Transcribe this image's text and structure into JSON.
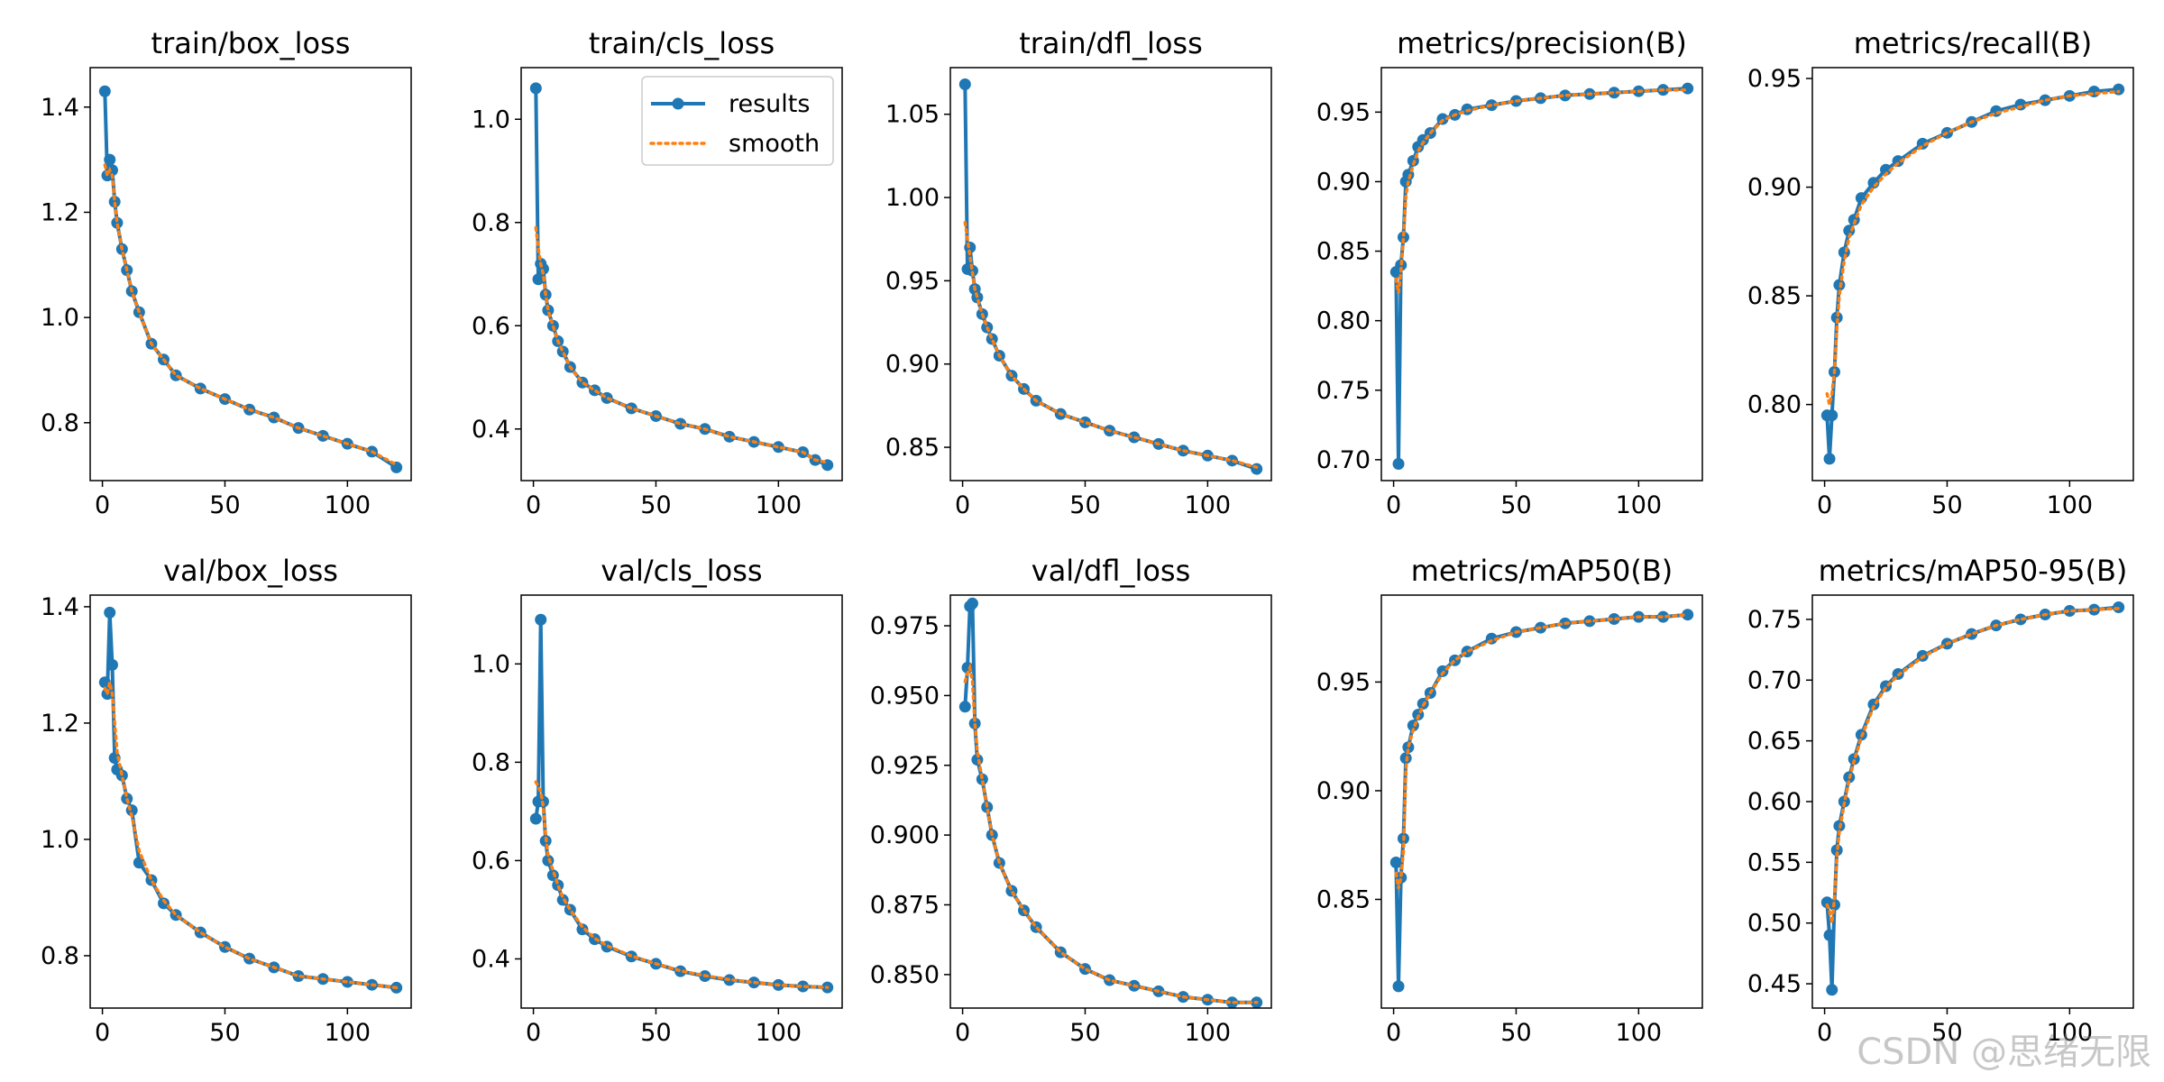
{
  "watermark": "CSDN @思绪无限",
  "colors": {
    "results": "#1f77b4",
    "smooth": "#ff7f0e"
  },
  "chart_data": [
    {
      "type": "line",
      "title": "train/box_loss",
      "x": [
        1,
        2,
        3,
        4,
        5,
        6,
        8,
        10,
        12,
        15,
        20,
        25,
        30,
        40,
        50,
        60,
        70,
        80,
        90,
        100,
        110,
        120
      ],
      "series": [
        {
          "name": "results",
          "values": [
            1.43,
            1.27,
            1.3,
            1.28,
            1.22,
            1.18,
            1.13,
            1.09,
            1.05,
            1.01,
            0.95,
            0.92,
            0.89,
            0.865,
            0.845,
            0.825,
            0.81,
            0.79,
            0.775,
            0.76,
            0.745,
            0.715
          ]
        },
        {
          "name": "smooth",
          "values": [
            1.29,
            1.27,
            1.28,
            1.27,
            1.22,
            1.18,
            1.13,
            1.09,
            1.05,
            1.01,
            0.95,
            0.92,
            0.89,
            0.865,
            0.845,
            0.825,
            0.81,
            0.79,
            0.775,
            0.76,
            0.745,
            0.72
          ]
        }
      ],
      "xlim": [
        -5,
        126
      ],
      "ylim": [
        0.69,
        1.475
      ],
      "xticks": [
        0,
        50,
        100
      ],
      "yticks": [
        0.8,
        1.0,
        1.2,
        1.4
      ],
      "ytick_labels": [
        "0.8",
        "1.0",
        "1.2",
        "1.4"
      ],
      "legend": false
    },
    {
      "type": "line",
      "title": "train/cls_loss",
      "x": [
        1,
        2,
        3,
        4,
        5,
        6,
        8,
        10,
        12,
        15,
        20,
        25,
        30,
        40,
        50,
        60,
        70,
        80,
        90,
        100,
        110,
        115,
        120
      ],
      "series": [
        {
          "name": "results",
          "values": [
            1.06,
            0.69,
            0.72,
            0.71,
            0.66,
            0.63,
            0.6,
            0.57,
            0.55,
            0.52,
            0.49,
            0.475,
            0.46,
            0.44,
            0.425,
            0.41,
            0.4,
            0.385,
            0.375,
            0.365,
            0.355,
            0.34,
            0.33
          ]
        },
        {
          "name": "smooth",
          "values": [
            0.79,
            0.75,
            0.72,
            0.7,
            0.66,
            0.63,
            0.6,
            0.57,
            0.55,
            0.52,
            0.49,
            0.475,
            0.46,
            0.44,
            0.425,
            0.41,
            0.4,
            0.385,
            0.375,
            0.365,
            0.355,
            0.34,
            0.335
          ]
        }
      ],
      "xlim": [
        -5,
        126
      ],
      "ylim": [
        0.3,
        1.1
      ],
      "xticks": [
        0,
        50,
        100
      ],
      "yticks": [
        0.4,
        0.6,
        0.8,
        1.0
      ],
      "ytick_labels": [
        "0.4",
        "0.6",
        "0.8",
        "1.0"
      ],
      "legend": true,
      "legend_position": "upper right"
    },
    {
      "type": "line",
      "title": "train/dfl_loss",
      "x": [
        1,
        2,
        3,
        4,
        5,
        6,
        8,
        10,
        12,
        15,
        20,
        25,
        30,
        40,
        50,
        60,
        70,
        80,
        90,
        100,
        110,
        120
      ],
      "series": [
        {
          "name": "results",
          "values": [
            1.068,
            0.957,
            0.97,
            0.956,
            0.945,
            0.94,
            0.93,
            0.922,
            0.915,
            0.905,
            0.893,
            0.885,
            0.878,
            0.87,
            0.865,
            0.86,
            0.856,
            0.852,
            0.848,
            0.845,
            0.842,
            0.837
          ]
        },
        {
          "name": "smooth",
          "values": [
            0.985,
            0.975,
            0.965,
            0.955,
            0.945,
            0.94,
            0.93,
            0.922,
            0.915,
            0.905,
            0.893,
            0.885,
            0.878,
            0.87,
            0.865,
            0.86,
            0.856,
            0.852,
            0.848,
            0.845,
            0.842,
            0.838
          ]
        }
      ],
      "xlim": [
        -5,
        126
      ],
      "ylim": [
        0.83,
        1.078
      ],
      "xticks": [
        0,
        50,
        100
      ],
      "yticks": [
        0.85,
        0.9,
        0.95,
        1.0,
        1.05
      ],
      "ytick_labels": [
        "0.85",
        "0.90",
        "0.95",
        "1.00",
        "1.05"
      ],
      "legend": false
    },
    {
      "type": "line",
      "title": "metrics/precision(B)",
      "x": [
        1,
        2,
        3,
        4,
        5,
        6,
        8,
        10,
        12,
        15,
        20,
        25,
        30,
        40,
        50,
        60,
        70,
        80,
        90,
        100,
        110,
        120
      ],
      "series": [
        {
          "name": "results",
          "values": [
            0.835,
            0.697,
            0.84,
            0.86,
            0.9,
            0.905,
            0.915,
            0.925,
            0.93,
            0.935,
            0.945,
            0.948,
            0.952,
            0.955,
            0.958,
            0.96,
            0.962,
            0.963,
            0.964,
            0.965,
            0.966,
            0.967
          ]
        },
        {
          "name": "smooth",
          "values": [
            0.83,
            0.82,
            0.835,
            0.86,
            0.89,
            0.9,
            0.912,
            0.922,
            0.928,
            0.935,
            0.944,
            0.948,
            0.951,
            0.955,
            0.958,
            0.96,
            0.962,
            0.963,
            0.964,
            0.965,
            0.966,
            0.966
          ]
        }
      ],
      "xlim": [
        -5,
        126
      ],
      "ylim": [
        0.685,
        0.982
      ],
      "xticks": [
        0,
        50,
        100
      ],
      "yticks": [
        0.7,
        0.75,
        0.8,
        0.85,
        0.9,
        0.95
      ],
      "ytick_labels": [
        "0.70",
        "0.75",
        "0.80",
        "0.85",
        "0.90",
        "0.95"
      ],
      "legend": false
    },
    {
      "type": "line",
      "title": "metrics/recall(B)",
      "x": [
        1,
        2,
        3,
        4,
        5,
        6,
        8,
        10,
        12,
        15,
        20,
        25,
        30,
        40,
        50,
        60,
        70,
        80,
        90,
        100,
        110,
        120
      ],
      "series": [
        {
          "name": "results",
          "values": [
            0.795,
            0.775,
            0.795,
            0.815,
            0.84,
            0.855,
            0.87,
            0.88,
            0.885,
            0.895,
            0.902,
            0.908,
            0.912,
            0.92,
            0.925,
            0.93,
            0.935,
            0.938,
            0.94,
            0.942,
            0.944,
            0.945
          ]
        },
        {
          "name": "smooth",
          "values": [
            0.805,
            0.8,
            0.805,
            0.815,
            0.835,
            0.85,
            0.866,
            0.877,
            0.883,
            0.892,
            0.9,
            0.906,
            0.911,
            0.919,
            0.925,
            0.93,
            0.934,
            0.937,
            0.94,
            0.942,
            0.943,
            0.944
          ]
        }
      ],
      "xlim": [
        -5,
        126
      ],
      "ylim": [
        0.765,
        0.955
      ],
      "xticks": [
        0,
        50,
        100
      ],
      "yticks": [
        0.8,
        0.85,
        0.9,
        0.95
      ],
      "ytick_labels": [
        "0.80",
        "0.85",
        "0.90",
        "0.95"
      ],
      "legend": false
    },
    {
      "type": "line",
      "title": "val/box_loss",
      "x": [
        1,
        2,
        3,
        4,
        5,
        6,
        8,
        10,
        12,
        15,
        20,
        25,
        30,
        40,
        50,
        60,
        70,
        80,
        90,
        100,
        110,
        120
      ],
      "series": [
        {
          "name": "results",
          "values": [
            1.27,
            1.25,
            1.39,
            1.3,
            1.14,
            1.12,
            1.11,
            1.07,
            1.05,
            0.96,
            0.93,
            0.89,
            0.87,
            0.84,
            0.815,
            0.795,
            0.78,
            0.765,
            0.76,
            0.755,
            0.75,
            0.745
          ]
        },
        {
          "name": "smooth",
          "values": [
            1.26,
            1.25,
            1.27,
            1.25,
            1.2,
            1.15,
            1.11,
            1.07,
            1.04,
            0.98,
            0.93,
            0.895,
            0.87,
            0.84,
            0.815,
            0.795,
            0.78,
            0.765,
            0.76,
            0.755,
            0.75,
            0.745
          ]
        }
      ],
      "xlim": [
        -5,
        126
      ],
      "ylim": [
        0.71,
        1.42
      ],
      "xticks": [
        0,
        50,
        100
      ],
      "yticks": [
        0.8,
        1.0,
        1.2,
        1.4
      ],
      "ytick_labels": [
        "0.8",
        "1.0",
        "1.2",
        "1.4"
      ],
      "legend": false
    },
    {
      "type": "line",
      "title": "val/cls_loss",
      "x": [
        1,
        2,
        3,
        4,
        5,
        6,
        8,
        10,
        12,
        15,
        20,
        25,
        30,
        40,
        50,
        60,
        70,
        80,
        90,
        100,
        110,
        120
      ],
      "series": [
        {
          "name": "results",
          "values": [
            0.685,
            0.72,
            1.09,
            0.72,
            0.64,
            0.6,
            0.57,
            0.55,
            0.52,
            0.5,
            0.46,
            0.44,
            0.425,
            0.405,
            0.39,
            0.375,
            0.365,
            0.357,
            0.352,
            0.347,
            0.344,
            0.342
          ]
        },
        {
          "name": "smooth",
          "values": [
            0.76,
            0.75,
            0.74,
            0.71,
            0.65,
            0.61,
            0.58,
            0.55,
            0.525,
            0.5,
            0.465,
            0.442,
            0.427,
            0.406,
            0.39,
            0.376,
            0.366,
            0.358,
            0.352,
            0.347,
            0.344,
            0.342
          ]
        }
      ],
      "xlim": [
        -5,
        126
      ],
      "ylim": [
        0.3,
        1.14
      ],
      "xticks": [
        0,
        50,
        100
      ],
      "yticks": [
        0.4,
        0.6,
        0.8,
        1.0
      ],
      "ytick_labels": [
        "0.4",
        "0.6",
        "0.8",
        "1.0"
      ],
      "legend": false
    },
    {
      "type": "line",
      "title": "val/dfl_loss",
      "x": [
        1,
        2,
        3,
        4,
        5,
        6,
        8,
        10,
        12,
        15,
        20,
        25,
        30,
        40,
        50,
        60,
        70,
        80,
        90,
        100,
        110,
        120
      ],
      "series": [
        {
          "name": "results",
          "values": [
            0.946,
            0.96,
            0.982,
            0.983,
            0.94,
            0.927,
            0.92,
            0.91,
            0.9,
            0.89,
            0.88,
            0.873,
            0.867,
            0.858,
            0.852,
            0.848,
            0.846,
            0.844,
            0.842,
            0.841,
            0.84,
            0.84
          ]
        },
        {
          "name": "smooth",
          "values": [
            0.955,
            0.958,
            0.96,
            0.955,
            0.94,
            0.93,
            0.92,
            0.91,
            0.9,
            0.89,
            0.88,
            0.873,
            0.867,
            0.858,
            0.852,
            0.848,
            0.846,
            0.844,
            0.842,
            0.841,
            0.84,
            0.84
          ]
        }
      ],
      "xlim": [
        -5,
        126
      ],
      "ylim": [
        0.838,
        0.986
      ],
      "xticks": [
        0,
        50,
        100
      ],
      "yticks": [
        0.85,
        0.875,
        0.9,
        0.925,
        0.95,
        0.975
      ],
      "ytick_labels": [
        "0.850",
        "0.875",
        "0.900",
        "0.925",
        "0.950",
        "0.975"
      ],
      "legend": false
    },
    {
      "type": "line",
      "title": "metrics/mAP50(B)",
      "x": [
        1,
        2,
        3,
        4,
        5,
        6,
        8,
        10,
        12,
        15,
        20,
        25,
        30,
        40,
        50,
        60,
        70,
        80,
        90,
        100,
        110,
        120
      ],
      "series": [
        {
          "name": "results",
          "values": [
            0.867,
            0.81,
            0.86,
            0.878,
            0.915,
            0.92,
            0.93,
            0.935,
            0.94,
            0.945,
            0.955,
            0.96,
            0.964,
            0.97,
            0.973,
            0.975,
            0.977,
            0.978,
            0.979,
            0.98,
            0.98,
            0.981
          ]
        },
        {
          "name": "smooth",
          "values": [
            0.862,
            0.855,
            0.86,
            0.872,
            0.91,
            0.92,
            0.928,
            0.934,
            0.939,
            0.945,
            0.954,
            0.96,
            0.964,
            0.969,
            0.973,
            0.975,
            0.977,
            0.978,
            0.979,
            0.98,
            0.98,
            0.981
          ]
        }
      ],
      "xlim": [
        -5,
        126
      ],
      "ylim": [
        0.8,
        0.99
      ],
      "xticks": [
        0,
        50,
        100
      ],
      "yticks": [
        0.85,
        0.9,
        0.95
      ],
      "ytick_labels": [
        "0.85",
        "0.90",
        "0.95"
      ],
      "legend": false
    },
    {
      "type": "line",
      "title": "metrics/mAP50-95(B)",
      "x": [
        1,
        2,
        3,
        4,
        5,
        6,
        8,
        10,
        12,
        15,
        20,
        25,
        30,
        40,
        50,
        60,
        70,
        80,
        90,
        100,
        110,
        120
      ],
      "series": [
        {
          "name": "results",
          "values": [
            0.517,
            0.49,
            0.445,
            0.515,
            0.56,
            0.58,
            0.6,
            0.62,
            0.635,
            0.655,
            0.68,
            0.695,
            0.705,
            0.72,
            0.73,
            0.738,
            0.745,
            0.75,
            0.754,
            0.757,
            0.758,
            0.76
          ]
        },
        {
          "name": "smooth",
          "values": [
            0.515,
            0.51,
            0.5,
            0.52,
            0.555,
            0.575,
            0.598,
            0.618,
            0.633,
            0.653,
            0.678,
            0.694,
            0.704,
            0.719,
            0.73,
            0.738,
            0.745,
            0.75,
            0.754,
            0.757,
            0.758,
            0.759
          ]
        }
      ],
      "xlim": [
        -5,
        126
      ],
      "ylim": [
        0.43,
        0.77
      ],
      "xticks": [
        0,
        50,
        100
      ],
      "yticks": [
        0.45,
        0.5,
        0.55,
        0.6,
        0.65,
        0.7,
        0.75
      ],
      "ytick_labels": [
        "0.45",
        "0.50",
        "0.55",
        "0.60",
        "0.65",
        "0.70",
        "0.75"
      ],
      "legend": false
    }
  ]
}
